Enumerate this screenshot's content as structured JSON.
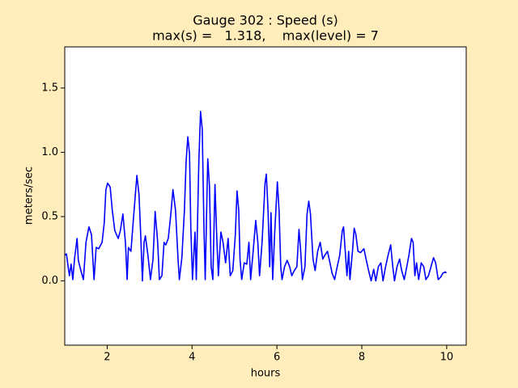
{
  "chart_data": {
    "type": "line",
    "title": "Gauge 302 : Speed (s)",
    "subtitle": "max(s) =   1.318,    max(level) = 7",
    "x_label": "hours",
    "y_label": "meters/sec",
    "color": "#0000ff",
    "xlim": [
      1,
      10.46
    ],
    "ylim": [
      -0.5,
      1.82
    ],
    "xticks": [
      2,
      4,
      6,
      8,
      10
    ],
    "yticks": [
      {
        "value": 0,
        "label": "0.0"
      },
      0.5,
      {
        "value": 1,
        "label": "1.0"
      },
      1.5
    ],
    "x": [
      1.0,
      1.04,
      1.08,
      1.11,
      1.15,
      1.19,
      1.23,
      1.29,
      1.32,
      1.38,
      1.44,
      1.5,
      1.57,
      1.63,
      1.69,
      1.74,
      1.8,
      1.88,
      1.93,
      1.97,
      2.01,
      2.07,
      2.12,
      2.18,
      2.26,
      2.31,
      2.37,
      2.43,
      2.47,
      2.5,
      2.56,
      2.62,
      2.7,
      2.75,
      2.79,
      2.83,
      2.87,
      2.9,
      2.96,
      3.02,
      3.08,
      3.13,
      3.19,
      3.23,
      3.29,
      3.34,
      3.38,
      3.44,
      3.5,
      3.55,
      3.61,
      3.67,
      3.7,
      3.76,
      3.82,
      3.86,
      3.9,
      3.94,
      3.97,
      4.01,
      4.07,
      4.1,
      4.16,
      4.2,
      4.24,
      4.28,
      4.31,
      4.37,
      4.41,
      4.45,
      4.49,
      4.54,
      4.58,
      4.62,
      4.68,
      4.73,
      4.79,
      4.85,
      4.9,
      4.96,
      5.02,
      5.06,
      5.1,
      5.13,
      5.17,
      5.23,
      5.29,
      5.34,
      5.38,
      5.44,
      5.5,
      5.55,
      5.59,
      5.65,
      5.72,
      5.75,
      5.79,
      5.83,
      5.86,
      5.9,
      5.95,
      6.01,
      6.05,
      6.09,
      6.12,
      6.18,
      6.24,
      6.3,
      6.35,
      6.41,
      6.47,
      6.52,
      6.56,
      6.6,
      6.66,
      6.71,
      6.75,
      6.79,
      6.85,
      6.9,
      6.96,
      7.02,
      7.08,
      7.13,
      7.19,
      7.25,
      7.3,
      7.36,
      7.42,
      7.48,
      7.54,
      7.57,
      7.61,
      7.65,
      7.69,
      7.72,
      7.78,
      7.82,
      7.86,
      7.91,
      7.97,
      8.05,
      8.1,
      8.16,
      8.22,
      8.28,
      8.33,
      8.39,
      8.45,
      8.5,
      8.56,
      8.62,
      8.68,
      8.73,
      8.77,
      8.83,
      8.89,
      8.94,
      9.0,
      9.06,
      9.11,
      9.17,
      9.21,
      9.25,
      9.29,
      9.34,
      9.4,
      9.46,
      9.51,
      9.57,
      9.63,
      9.69,
      9.74,
      9.8,
      9.86,
      9.91,
      9.97,
      9.99
    ],
    "values": [
      0.2,
      0.21,
      0.11,
      0.04,
      0.13,
      0.01,
      0.17,
      0.33,
      0.16,
      0.08,
      0.01,
      0.3,
      0.42,
      0.36,
      0.01,
      0.26,
      0.25,
      0.3,
      0.45,
      0.71,
      0.76,
      0.73,
      0.55,
      0.39,
      0.33,
      0.39,
      0.52,
      0.3,
      0.01,
      0.26,
      0.23,
      0.49,
      0.82,
      0.67,
      0.36,
      0,
      0.3,
      0.35,
      0.2,
      0.01,
      0.17,
      0.54,
      0.3,
      0.01,
      0.04,
      0.3,
      0.28,
      0.33,
      0.52,
      0.71,
      0.55,
      0.17,
      0.01,
      0.18,
      0.55,
      0.93,
      1.12,
      0.99,
      0.42,
      0.01,
      0.38,
      0.01,
      0.93,
      1.318,
      1.18,
      0.42,
      0.01,
      0.95,
      0.74,
      0.11,
      0.01,
      0.75,
      0.36,
      0.04,
      0.38,
      0.3,
      0.14,
      0.33,
      0.04,
      0.08,
      0.36,
      0.7,
      0.55,
      0.17,
      0.01,
      0.14,
      0.13,
      0.3,
      0.01,
      0.23,
      0.47,
      0.3,
      0.04,
      0.3,
      0.76,
      0.83,
      0.55,
      0.11,
      0.53,
      0.01,
      0.39,
      0.77,
      0.55,
      0.11,
      0.01,
      0.11,
      0.16,
      0.11,
      0.04,
      0.08,
      0.11,
      0.4,
      0.23,
      0.01,
      0.11,
      0.52,
      0.62,
      0.52,
      0.17,
      0.08,
      0.23,
      0.3,
      0.17,
      0.2,
      0.23,
      0.14,
      0.06,
      0.01,
      0.11,
      0.2,
      0.39,
      0.42,
      0.23,
      0.04,
      0.23,
      0.01,
      0.23,
      0.41,
      0.36,
      0.23,
      0.22,
      0.25,
      0.17,
      0.08,
      0,
      0.09,
      0,
      0.11,
      0.14,
      0,
      0.11,
      0.2,
      0.28,
      0.11,
      0,
      0.11,
      0.17,
      0.08,
      0.01,
      0.11,
      0.2,
      0.33,
      0.3,
      0.04,
      0.14,
      0.01,
      0.14,
      0.11,
      0.01,
      0.04,
      0.11,
      0.18,
      0.14,
      0.01,
      0.03,
      0.06,
      0.07,
      0.06
    ]
  }
}
